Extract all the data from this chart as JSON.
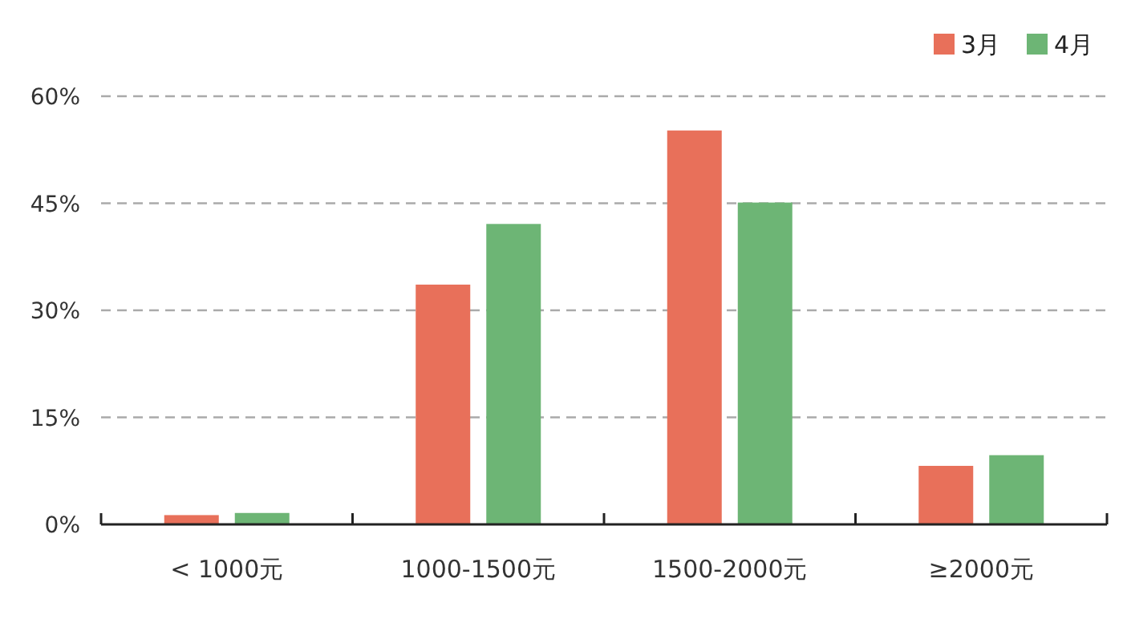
{
  "chart_data": {
    "type": "bar",
    "categories": [
      "< 1000元",
      "1000-1500元",
      "1500-2000元",
      "≥2000元"
    ],
    "series": [
      {
        "name": "3月",
        "color": "#e8705a",
        "values": [
          1.3,
          33.6,
          55.2,
          8.2
        ]
      },
      {
        "name": "4月",
        "color": "#6db575",
        "values": [
          1.6,
          42.1,
          45.1,
          9.7
        ]
      }
    ],
    "ylim": [
      0,
      60
    ],
    "yticks": [
      {
        "value": 0,
        "label": "0%"
      },
      {
        "value": 15,
        "label": "15%"
      },
      {
        "value": 30,
        "label": "30%"
      },
      {
        "value": 45,
        "label": "45%"
      },
      {
        "value": 60,
        "label": "60%"
      }
    ],
    "grid": "y",
    "legend": "top right"
  }
}
